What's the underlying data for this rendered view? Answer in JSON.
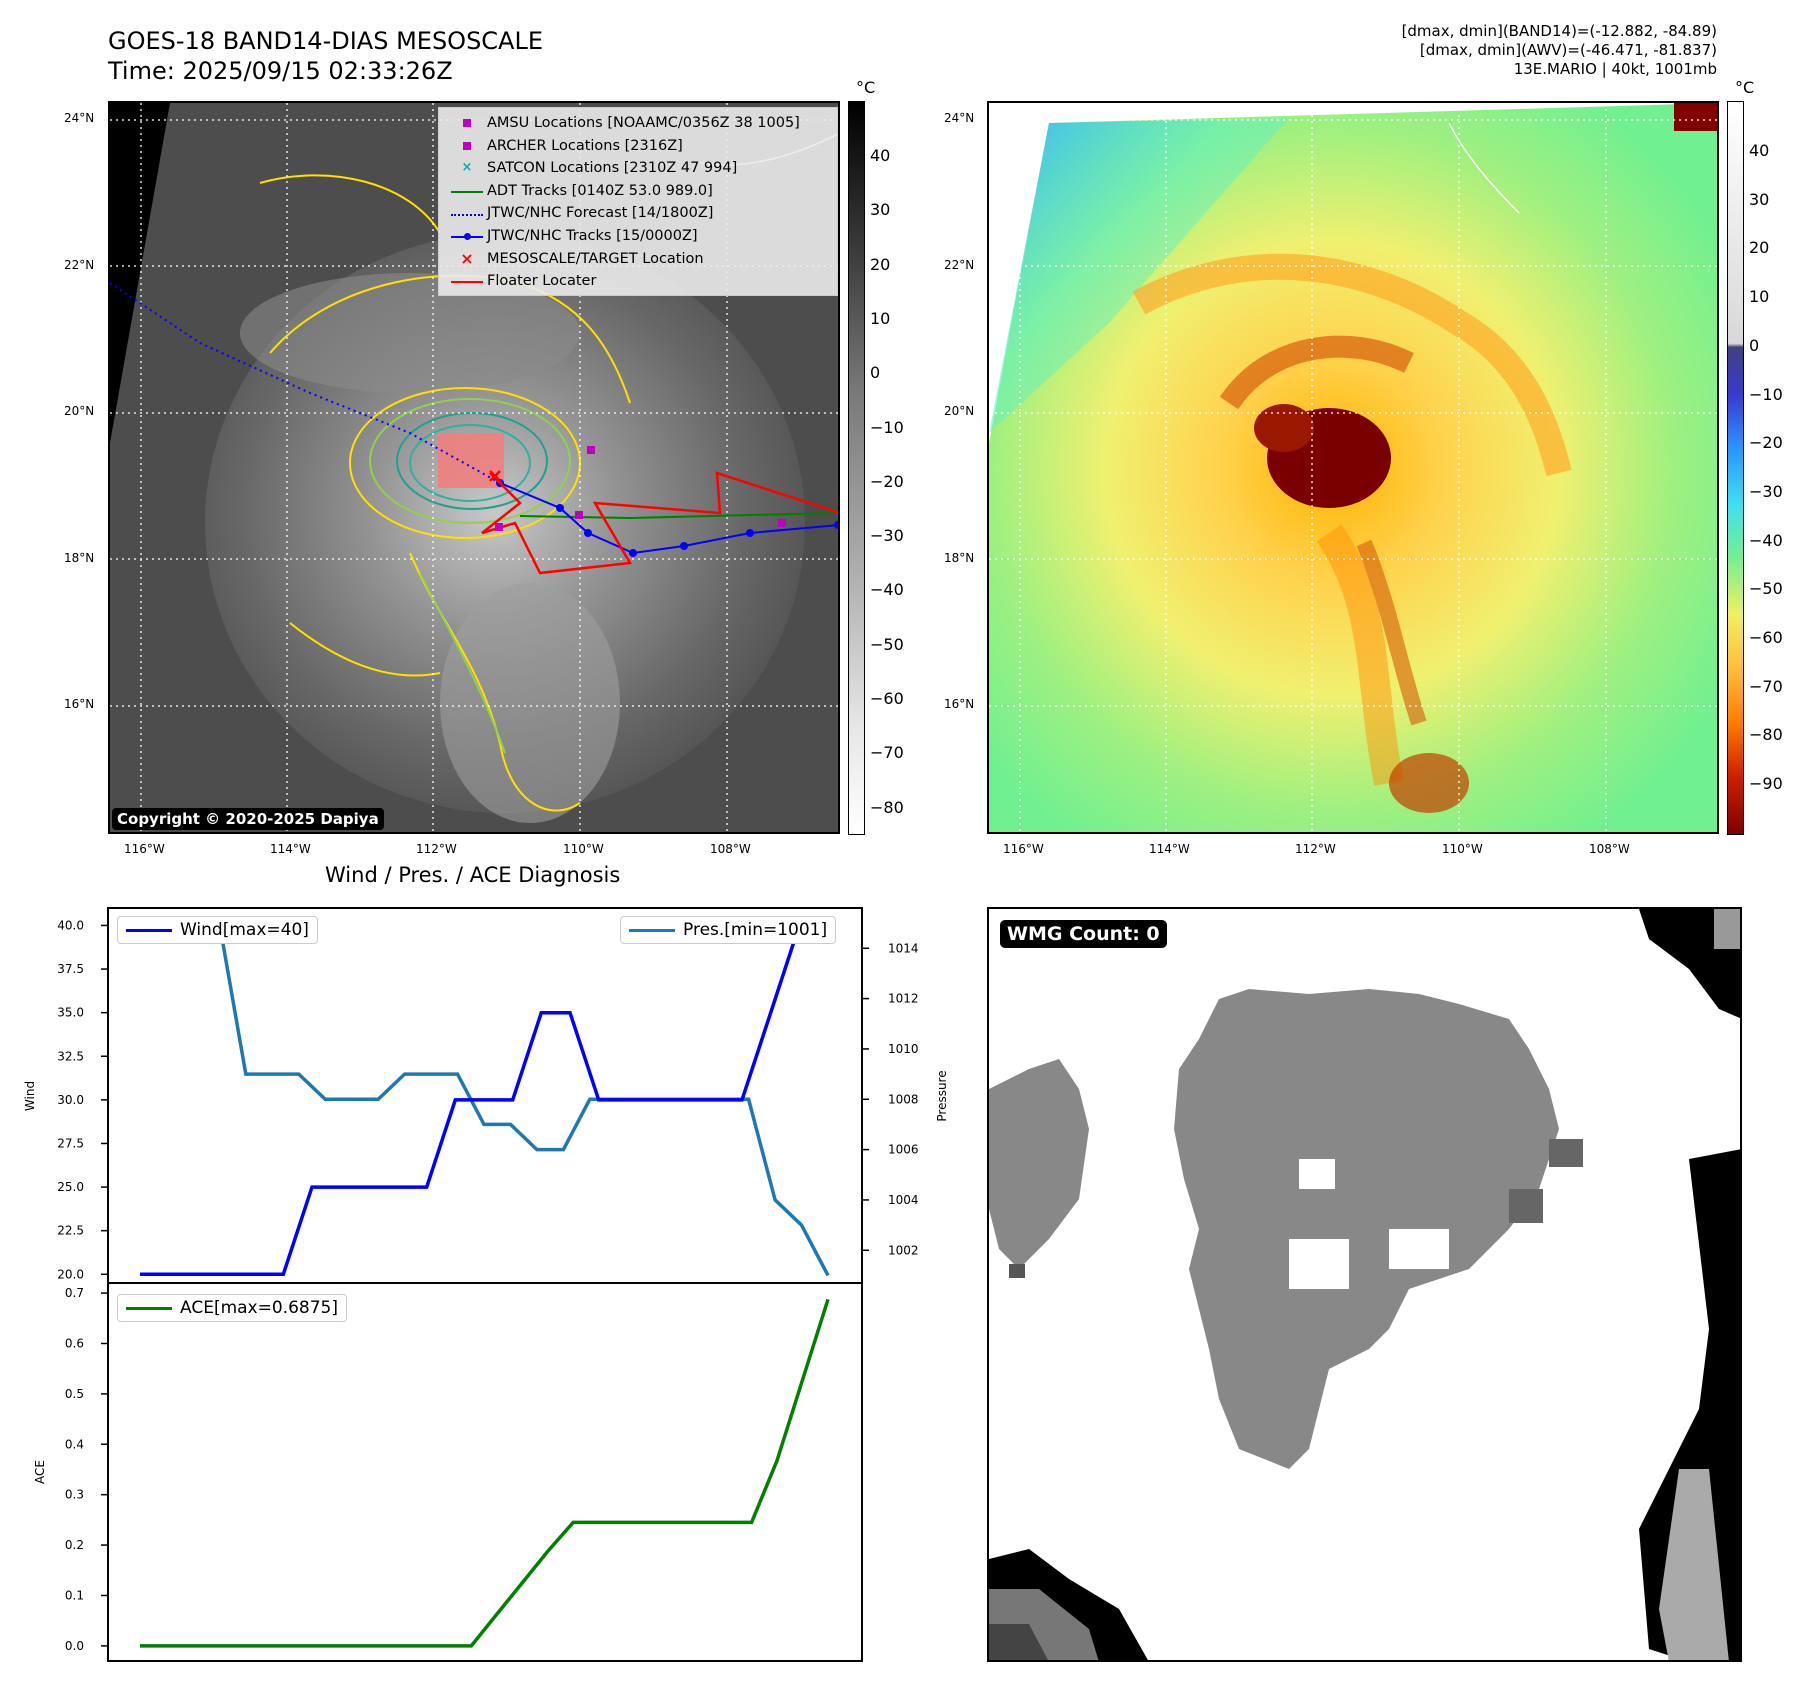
{
  "header": {
    "title_line1": "GOES-18 BAND14-DIAS MESOSCALE",
    "title_line2": "Time: 2025/09/15 02:33:26Z",
    "right_line1": "[dmax, dmin](BAND14)=(-12.882, -84.89)",
    "right_line2": "[dmax, dmin](AWV)=(-46.471, -81.837)",
    "right_line3": "13E.MARIO | 40kt, 1001mb"
  },
  "map": {
    "lon_ticks": [
      "116°W",
      "114°W",
      "112°W",
      "110°W",
      "108°W"
    ],
    "lat_ticks": [
      "24°N",
      "22°N",
      "20°N",
      "18°N",
      "16°N"
    ],
    "copyright": "Copyright © 2020-2025 Dapiya",
    "legend": [
      {
        "label": "AMSU Locations [NOAAMC/0356Z 38 1005]",
        "color": "#c000c0",
        "kind": "square"
      },
      {
        "label": "ARCHER Locations [2316Z]",
        "color": "#c000c0",
        "kind": "square"
      },
      {
        "label": "SATCON Locations [2310Z 47 994]",
        "color": "#00b0b0",
        "kind": "x"
      },
      {
        "label": "ADT Tracks [0140Z 53.0 989.0]",
        "color": "#008000",
        "kind": "line"
      },
      {
        "label": "JTWC/NHC Forecast [14/1800Z]",
        "color": "#0000ff",
        "kind": "dotted"
      },
      {
        "label": "JTWC/NHC Tracks [15/0000Z]",
        "color": "#0000ff",
        "kind": "linedot"
      },
      {
        "label": "MESOSCALE/TARGET Location",
        "color": "#ff0000",
        "kind": "x"
      },
      {
        "label": "Floater Locater",
        "color": "#ff0000",
        "kind": "line"
      }
    ],
    "colorbar1_unit": "°C",
    "colorbar1_ticks": [
      "40",
      "30",
      "20",
      "10",
      "0",
      "−10",
      "−20",
      "−30",
      "−40",
      "−50",
      "−60",
      "−70",
      "−80"
    ],
    "colorbar2_unit": "°C",
    "colorbar2_ticks": [
      "40",
      "30",
      "20",
      "10",
      "0",
      "−10",
      "−20",
      "−30",
      "−40",
      "−50",
      "−60",
      "−70",
      "−80",
      "−90"
    ]
  },
  "diagnosis": {
    "title": "Wind / Pres. / ACE Diagnosis",
    "wind_label": "Wind",
    "pres_label": "Pressure",
    "ace_label": "ACE",
    "wind_legend": "Wind[max=40]",
    "pres_legend": "Pres.[min=1001]",
    "ace_legend": "ACE[max=0.6875]",
    "wmg": "WMG Count: 0"
  },
  "chart_data": [
    {
      "type": "line",
      "title": "Wind / Pres. / ACE Diagnosis",
      "ylabel": "Wind",
      "ylim": [
        19.5,
        41
      ],
      "yticks": [
        "40.0",
        "37.5",
        "35.0",
        "32.5",
        "30.0",
        "27.5",
        "25.0",
        "22.5",
        "20.0"
      ],
      "series": [
        {
          "name": "Wind[max=40]",
          "color": "#0000ff",
          "values": [
            20,
            20,
            20,
            20,
            20,
            20,
            25,
            25,
            25,
            25,
            25,
            30,
            30,
            30,
            35,
            35,
            30,
            30,
            30,
            30,
            30,
            30,
            35,
            40,
            40
          ]
        }
      ]
    },
    {
      "type": "line",
      "ylabel": "Pressure",
      "ylim": [
        1000.7,
        1015.6
      ],
      "yticks": [
        "1014",
        "1012",
        "1010",
        "1008",
        "1006",
        "1004",
        "1002"
      ],
      "series": [
        {
          "name": "Pres.[min=1001]",
          "color": "#1f77b4",
          "values": [
            1015,
            1015,
            1015,
            1015,
            1009,
            1009,
            1009,
            1008,
            1008,
            1008,
            1009,
            1009,
            1009,
            1007,
            1007,
            1006,
            1006,
            1008,
            1008,
            1008,
            1008,
            1008,
            1008,
            1008,
            1004,
            1003,
            1001
          ]
        }
      ]
    },
    {
      "type": "line",
      "ylabel": "ACE",
      "ylim": [
        -0.03,
        0.72
      ],
      "yticks": [
        "0.7",
        "0.6",
        "0.5",
        "0.4",
        "0.3",
        "0.2",
        "0.1",
        "0.0"
      ],
      "series": [
        {
          "name": "ACE[max=0.6875]",
          "color": "#008000",
          "values": [
            0,
            0,
            0,
            0,
            0,
            0,
            0,
            0,
            0,
            0,
            0,
            0,
            0,
            0,
            0.0625,
            0.125,
            0.1875,
            0.245,
            0.245,
            0.245,
            0.245,
            0.245,
            0.245,
            0.245,
            0.245,
            0.3675,
            0.5275,
            0.6875
          ]
        }
      ]
    }
  ]
}
